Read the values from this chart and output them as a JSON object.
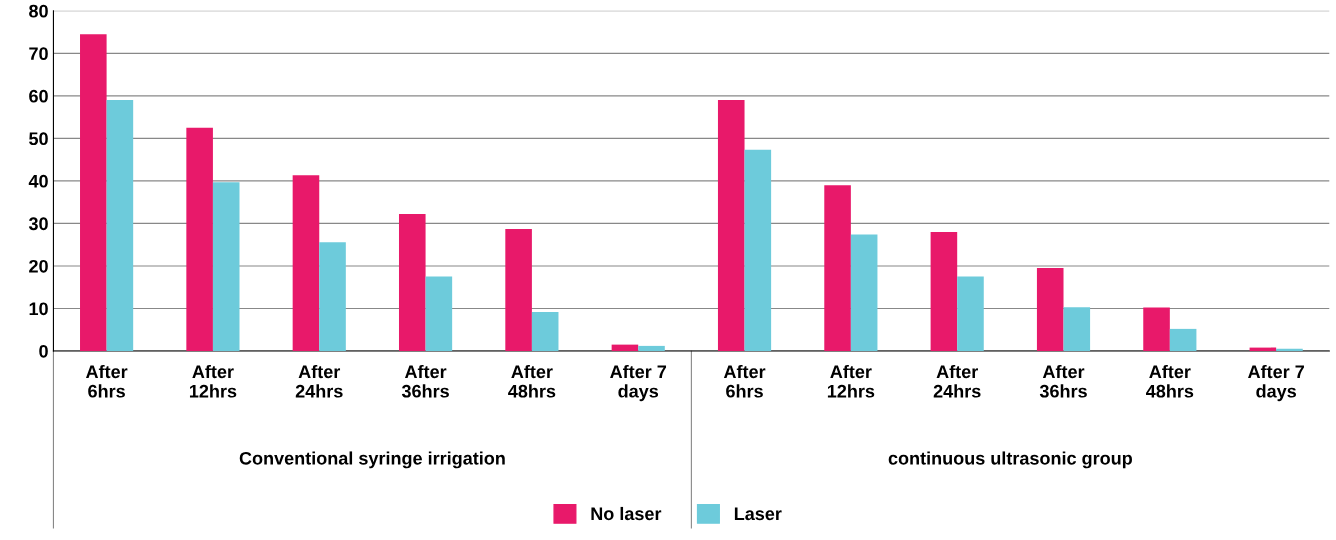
{
  "chart_data": {
    "type": "bar",
    "categories": [
      "After\n6hrs",
      "After\n12hrs",
      "After\n24hrs",
      "After\n36hrs",
      "After\n48hrs",
      "After 7\ndays",
      "After\n6hrs",
      "After\n12hrs",
      "After\n24hrs",
      "After\n36hrs",
      "After\n48hrs",
      "After 7\ndays"
    ],
    "series": [
      {
        "name": "No laser",
        "color": "#e8196a",
        "values": [
          74.5,
          52.5,
          41.3,
          32.2,
          28.7,
          1.5,
          59,
          39,
          28,
          19.5,
          10.2,
          0.8
        ]
      },
      {
        "name": "Laser",
        "color": "#6dcbdb",
        "values": [
          59,
          39.7,
          25.6,
          17.5,
          9.2,
          1.2,
          47.3,
          27.4,
          17.5,
          10.3,
          5.2,
          0.5
        ]
      }
    ],
    "annotations": [
      "Conventional syringe irrigation",
      "continuous ultrasonic group"
    ],
    "ylim": [
      0,
      80
    ],
    "yticks": [
      0,
      10,
      20,
      30,
      40,
      50,
      60,
      70,
      80
    ],
    "grid": "y",
    "legend": "bottom"
  }
}
